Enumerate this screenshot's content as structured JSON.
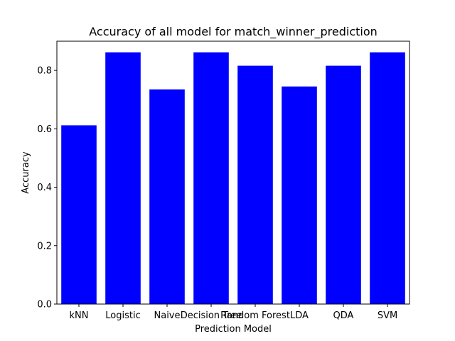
{
  "chart_data": {
    "type": "bar",
    "title": "Accuracy of all model for match_winner_prediction",
    "xlabel": "Prediction Model",
    "ylabel": "Accuracy",
    "categories": [
      "kNN",
      "Logistic",
      "Naive",
      "Decision Tree",
      "Random Forest",
      "LDA",
      "QDA",
      "SVM"
    ],
    "values": [
      0.612,
      0.862,
      0.735,
      0.862,
      0.816,
      0.745,
      0.816,
      0.862
    ],
    "ylim": [
      0,
      0.9
    ],
    "yticks": [
      0.0,
      0.2,
      0.4,
      0.6,
      0.8
    ],
    "ytick_labels": [
      "0.0",
      "0.2",
      "0.4",
      "0.6",
      "0.8"
    ],
    "bar_color": "#0000ff",
    "grid": false,
    "legend": "none"
  }
}
